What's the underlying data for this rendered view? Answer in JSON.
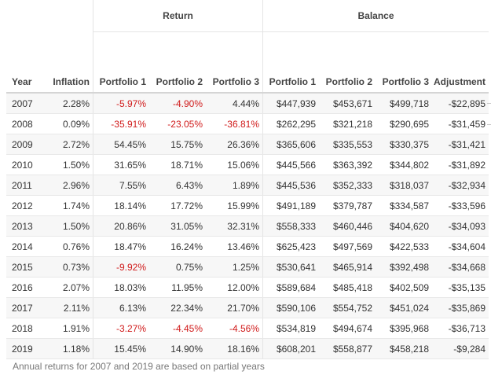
{
  "table": {
    "group_headers": {
      "return": "Return",
      "balance": "Balance"
    },
    "columns": [
      "Year",
      "Inflation",
      "Portfolio 1",
      "Portfolio 2",
      "Portfolio 3",
      "Portfolio 1",
      "Portfolio 2",
      "Portfolio 3",
      "Adjustment"
    ],
    "rows": [
      [
        "2007",
        "2.28%",
        "-5.97%",
        "-4.90%",
        "4.44%",
        "$447,939",
        "$453,671",
        "$499,718",
        "-$22,895"
      ],
      [
        "2008",
        "0.09%",
        "-35.91%",
        "-23.05%",
        "-36.81%",
        "$262,295",
        "$321,218",
        "$290,695",
        "-$31,459"
      ],
      [
        "2009",
        "2.72%",
        "54.45%",
        "15.75%",
        "26.36%",
        "$365,606",
        "$335,553",
        "$330,375",
        "-$31,421"
      ],
      [
        "2010",
        "1.50%",
        "31.65%",
        "18.71%",
        "15.06%",
        "$445,566",
        "$363,392",
        "$344,802",
        "-$31,892"
      ],
      [
        "2011",
        "2.96%",
        "7.55%",
        "6.43%",
        "1.89%",
        "$445,536",
        "$352,333",
        "$318,037",
        "-$32,934"
      ],
      [
        "2012",
        "1.74%",
        "18.14%",
        "17.72%",
        "15.99%",
        "$491,189",
        "$379,787",
        "$334,587",
        "-$33,596"
      ],
      [
        "2013",
        "1.50%",
        "20.86%",
        "31.05%",
        "32.31%",
        "$558,333",
        "$460,446",
        "$404,620",
        "-$34,093"
      ],
      [
        "2014",
        "0.76%",
        "18.47%",
        "16.24%",
        "13.46%",
        "$625,423",
        "$497,569",
        "$422,533",
        "-$34,604"
      ],
      [
        "2015",
        "0.73%",
        "-9.92%",
        "0.75%",
        "1.25%",
        "$530,641",
        "$465,914",
        "$392,498",
        "-$34,668"
      ],
      [
        "2016",
        "2.07%",
        "18.03%",
        "11.95%",
        "12.00%",
        "$589,684",
        "$485,418",
        "$402,509",
        "-$35,135"
      ],
      [
        "2017",
        "2.11%",
        "6.13%",
        "22.34%",
        "21.70%",
        "$590,106",
        "$554,752",
        "$451,024",
        "-$35,869"
      ],
      [
        "2018",
        "1.91%",
        "-3.27%",
        "-4.45%",
        "-4.56%",
        "$534,819",
        "$494,674",
        "$395,968",
        "-$36,713"
      ],
      [
        "2019",
        "1.18%",
        "15.45%",
        "14.90%",
        "18.16%",
        "$608,201",
        "$558,877",
        "$458,218",
        "-$9,284"
      ]
    ],
    "negative_color": "#d01a1a",
    "note": "Annual returns for 2007 and 2019 are based on partial years"
  }
}
